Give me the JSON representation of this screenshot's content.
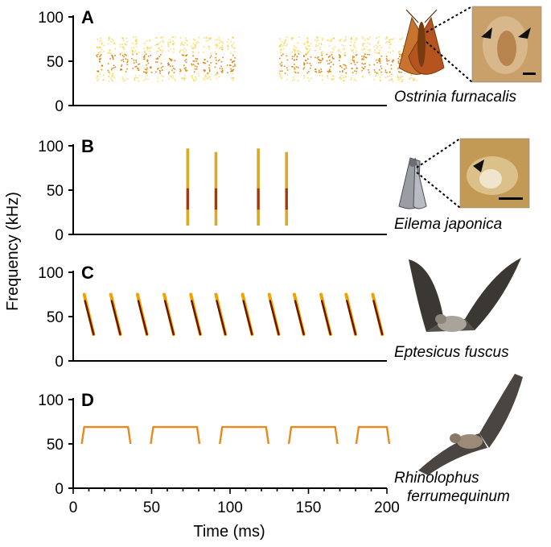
{
  "figure": {
    "ylabel": "Frequency (kHz)",
    "xlabel": "Time (ms)",
    "x_ticks": [
      "0",
      "50",
      "100",
      "150",
      "200"
    ]
  },
  "chart_data": [
    {
      "type": "heatmap",
      "panel": "A",
      "species": "Ostrinia furnacalis",
      "xlim": [
        0,
        200
      ],
      "ylim": [
        0,
        100
      ],
      "y_ticks": [
        "0",
        "50",
        "100"
      ],
      "show_x_ticks": false,
      "color": "#f2c200",
      "bursts": [
        {
          "start_ms": 13,
          "end_ms": 104,
          "low_khz": 28,
          "high_khz": 78,
          "pulses": 12
        },
        {
          "start_ms": 130,
          "end_ms": 220,
          "low_khz": 28,
          "high_khz": 78,
          "pulses": 12
        }
      ]
    },
    {
      "type": "heatmap",
      "panel": "B",
      "species": "Eilema japonica",
      "xlim": [
        0,
        200
      ],
      "ylim": [
        0,
        100
      ],
      "y_ticks": [
        "0",
        "50",
        "100"
      ],
      "show_x_ticks": false,
      "color": "#d49a00",
      "clicks": [
        {
          "t_ms": 73,
          "low_khz": 10,
          "high_khz": 97
        },
        {
          "t_ms": 91,
          "low_khz": 10,
          "high_khz": 93
        },
        {
          "t_ms": 118,
          "low_khz": 10,
          "high_khz": 97
        },
        {
          "t_ms": 136,
          "low_khz": 10,
          "high_khz": 93
        }
      ]
    },
    {
      "type": "heatmap",
      "panel": "C",
      "species": "Eptesicus fuscus",
      "xlim": [
        0,
        200
      ],
      "ylim": [
        0,
        100
      ],
      "y_ticks": [
        "0",
        "50",
        "100"
      ],
      "show_x_ticks": false,
      "color": "#b73a16",
      "fm_calls": [
        {
          "t_start_ms": 7,
          "t_end_ms": 13,
          "f_start_khz": 75,
          "f_end_khz": 30
        },
        {
          "t_start_ms": 24,
          "t_end_ms": 30,
          "f_start_khz": 75,
          "f_end_khz": 30
        },
        {
          "t_start_ms": 41,
          "t_end_ms": 47,
          "f_start_khz": 75,
          "f_end_khz": 30
        },
        {
          "t_start_ms": 58,
          "t_end_ms": 64,
          "f_start_khz": 75,
          "f_end_khz": 30
        },
        {
          "t_start_ms": 75,
          "t_end_ms": 81,
          "f_start_khz": 75,
          "f_end_khz": 30
        },
        {
          "t_start_ms": 91,
          "t_end_ms": 97,
          "f_start_khz": 75,
          "f_end_khz": 30
        },
        {
          "t_start_ms": 108,
          "t_end_ms": 114,
          "f_start_khz": 75,
          "f_end_khz": 30
        },
        {
          "t_start_ms": 125,
          "t_end_ms": 131,
          "f_start_khz": 75,
          "f_end_khz": 30
        },
        {
          "t_start_ms": 141,
          "t_end_ms": 147,
          "f_start_khz": 75,
          "f_end_khz": 30
        },
        {
          "t_start_ms": 158,
          "t_end_ms": 164,
          "f_start_khz": 75,
          "f_end_khz": 30
        },
        {
          "t_start_ms": 174,
          "t_end_ms": 180,
          "f_start_khz": 75,
          "f_end_khz": 30
        },
        {
          "t_start_ms": 191,
          "t_end_ms": 197,
          "f_start_khz": 75,
          "f_end_khz": 30
        }
      ]
    },
    {
      "type": "heatmap",
      "panel": "D",
      "species_line1": "Rhinolophus",
      "species_line2": "ferrumequinum",
      "xlim": [
        0,
        200
      ],
      "ylim": [
        0,
        100
      ],
      "y_ticks": [
        "0",
        "50",
        "100"
      ],
      "show_x_ticks": true,
      "color": "#e8891e",
      "cf_fm_calls": [
        {
          "start_ms": 7,
          "end_ms": 35,
          "cf_khz": 69,
          "fm_low_khz": 50
        },
        {
          "start_ms": 51,
          "end_ms": 79,
          "cf_khz": 69,
          "fm_low_khz": 50
        },
        {
          "start_ms": 95,
          "end_ms": 123,
          "cf_khz": 69,
          "fm_low_khz": 50
        },
        {
          "start_ms": 139,
          "end_ms": 167,
          "cf_khz": 69,
          "fm_low_khz": 50
        },
        {
          "start_ms": 182,
          "end_ms": 200,
          "cf_khz": 69,
          "fm_low_khz": 50
        }
      ]
    }
  ],
  "insets": {
    "moth_a": {
      "body": "#b5541e",
      "wing": "#c8742e",
      "detail_bg": "#c9a06a"
    },
    "moth_b": {
      "body": "#8a8f96",
      "wing": "#a9adb2",
      "detail_bg": "#c39a55"
    },
    "bat_c": {
      "wing": "#3b3733",
      "body": "#a8a49a"
    },
    "bat_d": {
      "wing": "#4a4540",
      "body": "#9b8a78"
    }
  }
}
